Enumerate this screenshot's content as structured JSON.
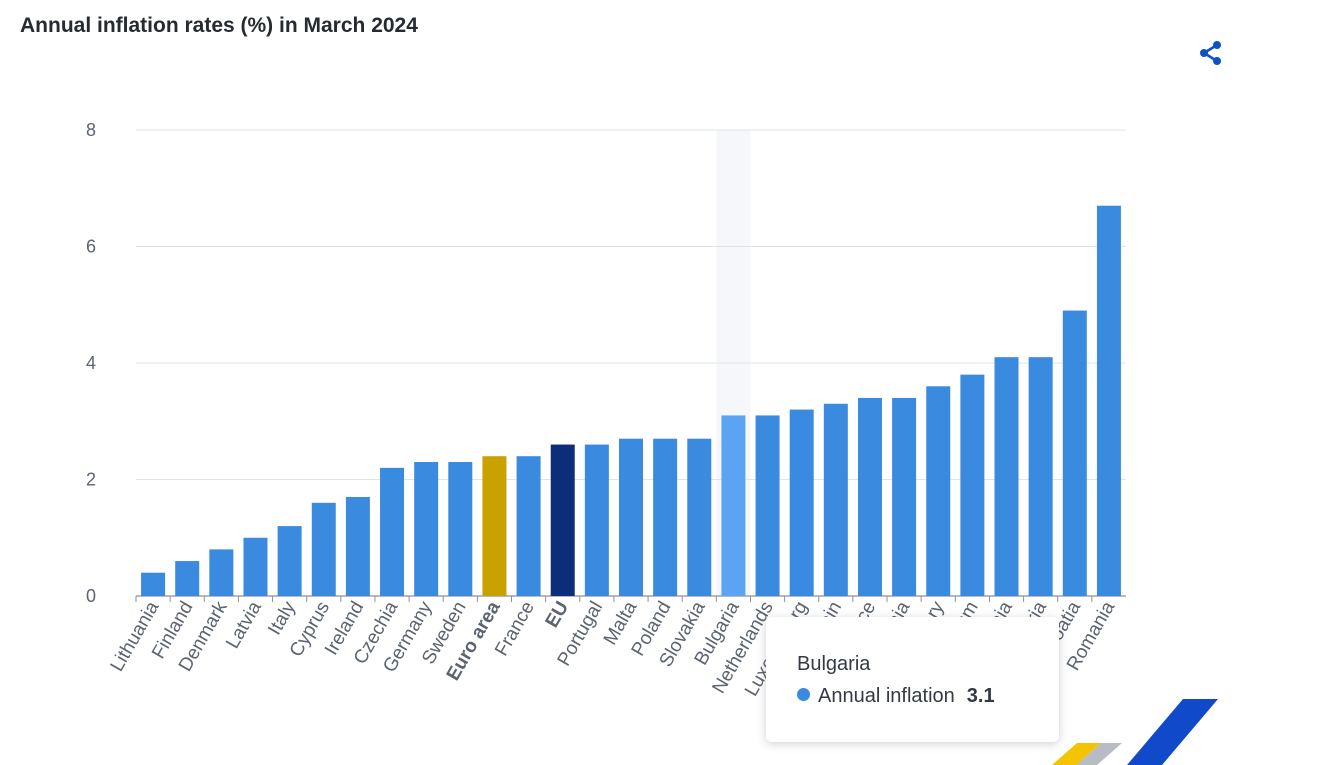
{
  "title": "Annual inflation rates (%) in March 2024",
  "share_icon": "share-icon",
  "colors": {
    "bar": "#3a8ae0",
    "bar_highlight": "#5aa4f3",
    "euro_area": "#c9a100",
    "eu": "#0c2d7a",
    "grid": "#dfe4ea",
    "axis_text": "#5b6470"
  },
  "tooltip": {
    "title": "Bulgaria",
    "series": "Annual inflation",
    "value": "3.1"
  },
  "chart_data": {
    "type": "bar",
    "title": "Annual inflation rates (%) in March 2024",
    "xlabel": "",
    "ylabel": "",
    "ylim": [
      0,
      8
    ],
    "yticks": [
      0,
      2,
      4,
      6,
      8
    ],
    "grid": true,
    "hovered_category": "Bulgaria",
    "series": [
      {
        "name": "Annual inflation",
        "categories": [
          "Lithuania",
          "Finland",
          "Denmark",
          "Latvia",
          "Italy",
          "Cyprus",
          "Ireland",
          "Czechia",
          "Germany",
          "Sweden",
          "Euro area",
          "France",
          "EU",
          "Portugal",
          "Malta",
          "Poland",
          "Slovakia",
          "Bulgaria",
          "Netherlands",
          "Luxembourg",
          "Spain",
          "Greece",
          "Slovenia",
          "Hungary",
          "Belgium",
          "Estonia",
          "Austria",
          "Croatia",
          "Romania"
        ],
        "values": [
          0.4,
          0.6,
          0.8,
          1.0,
          1.2,
          1.6,
          1.7,
          2.2,
          2.3,
          2.3,
          2.4,
          2.4,
          2.6,
          2.6,
          2.7,
          2.7,
          2.7,
          3.1,
          3.1,
          3.2,
          3.3,
          3.4,
          3.4,
          3.6,
          3.8,
          4.1,
          4.1,
          4.9,
          6.7
        ]
      }
    ],
    "special_categories": {
      "Euro area": "euro_area",
      "EU": "eu"
    },
    "bold_labels": [
      "Euro area",
      "EU"
    ]
  }
}
